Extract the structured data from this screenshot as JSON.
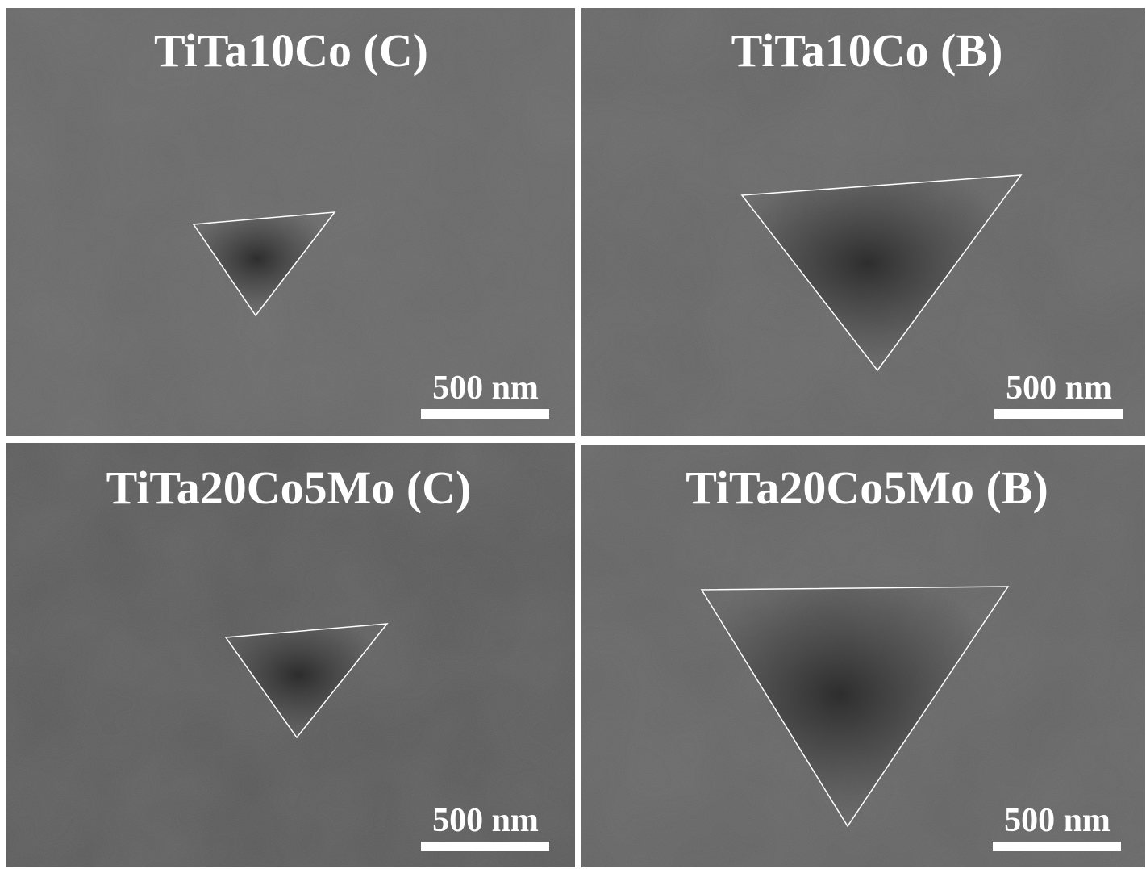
{
  "panels": [
    {
      "title": "TiTa10Co (C)",
      "scale_bar": "500 nm"
    },
    {
      "title": "TiTa10Co (B)",
      "scale_bar": "500 nm"
    },
    {
      "title": "TiTa20Co5Mo (C)",
      "scale_bar": "500 nm"
    },
    {
      "title": "TiTa20Co5Mo (B)",
      "scale_bar": "500 nm"
    }
  ]
}
